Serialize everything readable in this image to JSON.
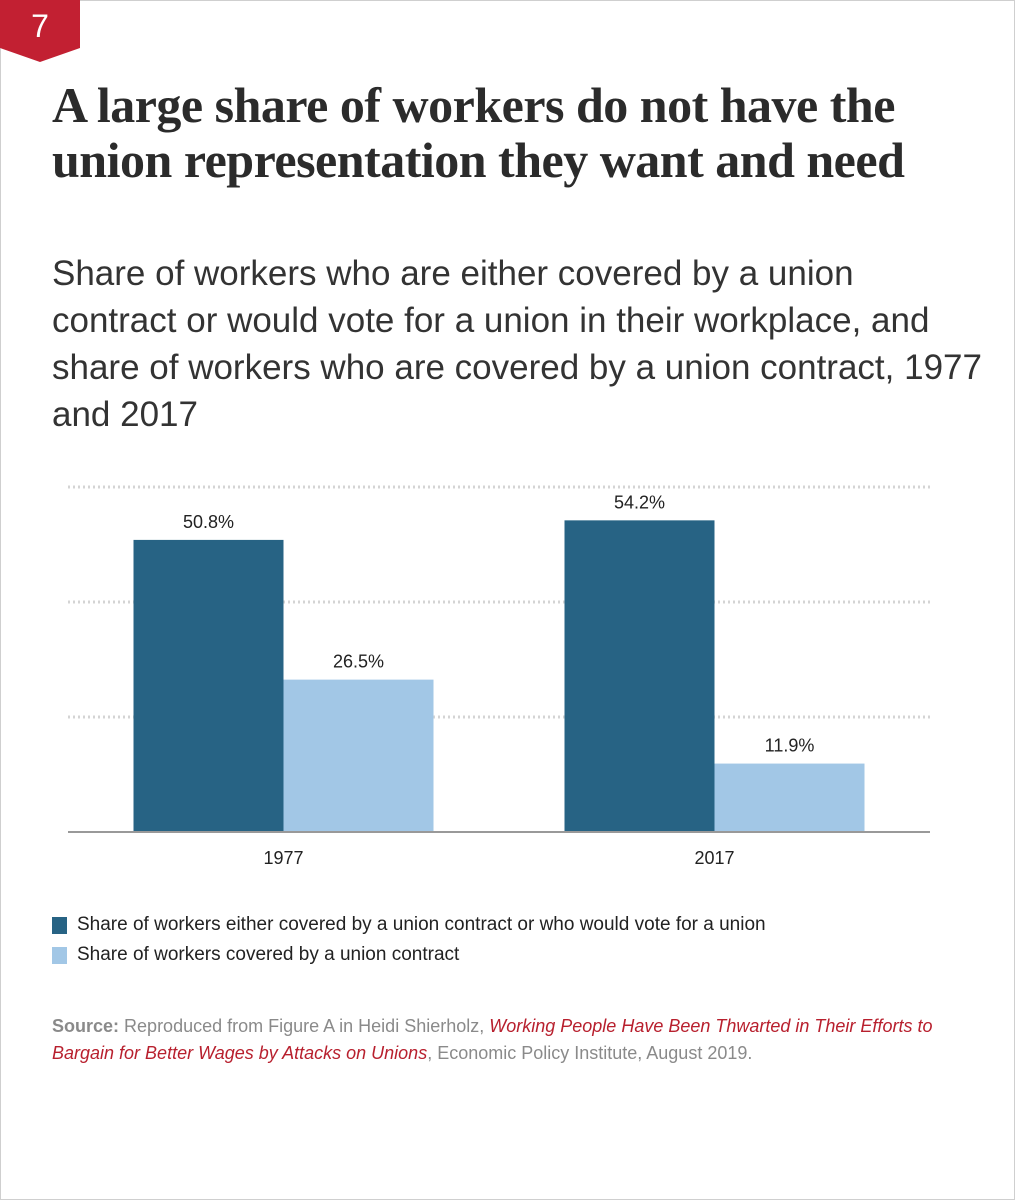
{
  "badge": {
    "number": "7",
    "color": "#c22032"
  },
  "title": "A large share of workers do not have the union representation they want and need",
  "subtitle": "Share of workers who are either covered by a union contract or would vote for a union in their workplace, and share of workers who are covered by a union contract, 1977 and 2017",
  "chart_data": {
    "type": "bar",
    "categories": [
      "1977",
      "2017"
    ],
    "series": [
      {
        "name": "Share of workers either covered by a union contract or who would vote for a union",
        "values": [
          50.8,
          54.2
        ],
        "labels": [
          "50.8%",
          "54.2%"
        ],
        "color": "#276384"
      },
      {
        "name": "Share of workers covered by a union contract",
        "values": [
          26.5,
          11.9
        ],
        "labels": [
          "26.5%",
          "11.9%"
        ],
        "color": "#a2c7e6"
      }
    ],
    "ylim": [
      0,
      60
    ],
    "gridlines": [
      20,
      40,
      60
    ],
    "title": "",
    "xlabel": "",
    "ylabel": ""
  },
  "legend": [
    {
      "label": "Share of workers either covered by a union contract or who would vote for a union",
      "color": "#276384"
    },
    {
      "label": "Share of workers covered by a union contract",
      "color": "#a2c7e6"
    }
  ],
  "source": {
    "label": "Source:",
    "prefix": "Reproduced from Figure A in Heidi Shierholz,",
    "link": "Working People Have Been Thwarted in Their Efforts to Bargain for Better Wages by Attacks on Unions",
    "suffix": ", Economic Policy Institute, August 2019."
  }
}
